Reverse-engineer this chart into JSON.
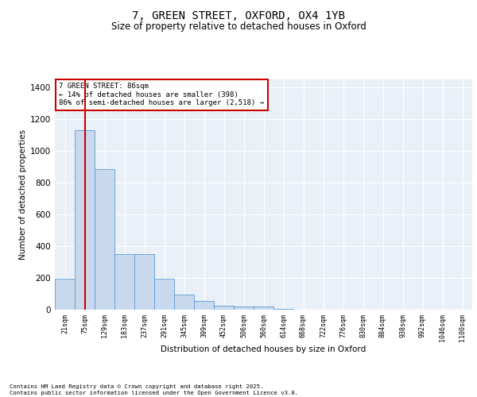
{
  "title_line1": "7, GREEN STREET, OXFORD, OX4 1YB",
  "title_line2": "Size of property relative to detached houses in Oxford",
  "xlabel": "Distribution of detached houses by size in Oxford",
  "ylabel": "Number of detached properties",
  "bar_color": "#c9d9ed",
  "bar_edge_color": "#5b9bd5",
  "background_color": "#eaf0f8",
  "grid_color": "#ffffff",
  "categories": [
    "21sqm",
    "75sqm",
    "129sqm",
    "183sqm",
    "237sqm",
    "291sqm",
    "345sqm",
    "399sqm",
    "452sqm",
    "506sqm",
    "560sqm",
    "614sqm",
    "668sqm",
    "722sqm",
    "776sqm",
    "830sqm",
    "884sqm",
    "938sqm",
    "992sqm",
    "1046sqm",
    "1100sqm"
  ],
  "values": [
    195,
    1130,
    885,
    350,
    350,
    197,
    95,
    55,
    25,
    22,
    18,
    5,
    0,
    0,
    0,
    0,
    0,
    0,
    0,
    0,
    0
  ],
  "property_line_x": 1,
  "property_line_color": "#cc0000",
  "annotation_text": "7 GREEN STREET: 86sqm\n← 14% of detached houses are smaller (398)\n86% of semi-detached houses are larger (2,518) →",
  "annotation_box_color": "#cc0000",
  "ylim": [
    0,
    1450
  ],
  "yticks": [
    0,
    200,
    400,
    600,
    800,
    1000,
    1200,
    1400
  ],
  "footer_line1": "Contains HM Land Registry data © Crown copyright and database right 2025.",
  "footer_line2": "Contains public sector information licensed under the Open Government Licence v3.0."
}
